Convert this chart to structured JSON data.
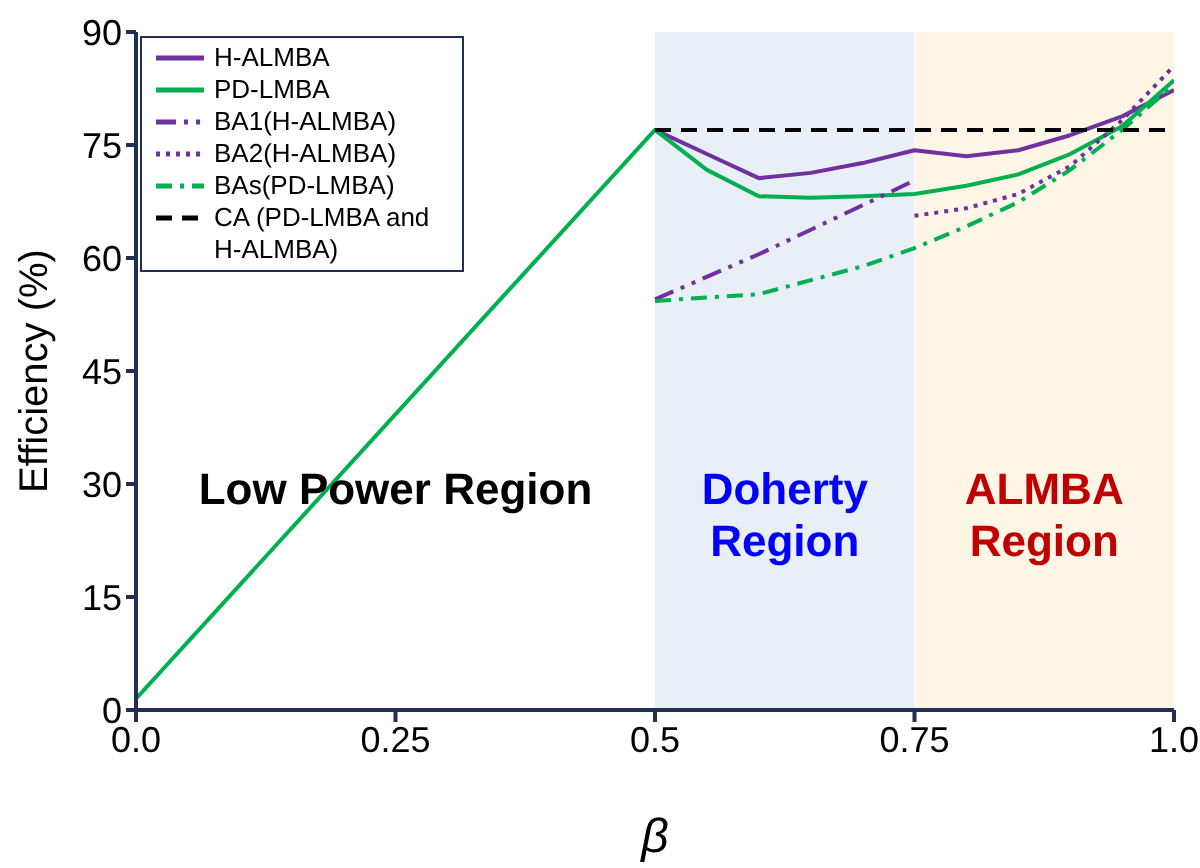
{
  "chart_data": {
    "type": "line",
    "xlabel": "β",
    "ylabel": "Efficiency (%)",
    "xlim": [
      0,
      1
    ],
    "ylim": [
      0,
      90
    ],
    "xticks": [
      {
        "value": 0,
        "label": "0.0"
      },
      0.25,
      {
        "value": 0.5,
        "label": "0.5"
      },
      0.75,
      {
        "value": 1,
        "label": "1.0"
      }
    ],
    "yticks": [
      0,
      15,
      30,
      45,
      60,
      75,
      90
    ],
    "grid": false,
    "legend": "top left",
    "marker": "none",
    "series": [
      {
        "name": "H-ALMBA",
        "color": "#7030a0",
        "line_style": "solid",
        "x": [
          0.5,
          0.55,
          0.6,
          0.65,
          0.7,
          0.75,
          0.8,
          0.85,
          0.9,
          0.95,
          1
        ],
        "values": [
          77,
          73.8,
          70.6,
          71.3,
          72.6,
          74.3,
          73.5,
          74.3,
          76.3,
          78.8,
          82.3
        ]
      },
      {
        "name": "PD-LMBA",
        "color": "#00b050",
        "line_style": "solid",
        "x": [
          0,
          0.5,
          0.55,
          0.6,
          0.65,
          0.7,
          0.75,
          0.8,
          0.85,
          0.9,
          0.95,
          1
        ],
        "values": [
          1.5,
          77,
          71.7,
          68.2,
          68,
          68.2,
          68.5,
          69.6,
          71.1,
          73.8,
          77.5,
          83.6
        ]
      },
      {
        "name": "BA1(H-ALMBA)",
        "color": "#7030a0",
        "line_style": "dashdotdot",
        "x": [
          0.5,
          0.6,
          0.7,
          0.75
        ],
        "values": [
          54.5,
          60.5,
          67,
          70.3
        ]
      },
      {
        "name": "BA2(H-ALMBA)",
        "color": "#7030a0",
        "line_style": "dotted",
        "x": [
          0.75,
          0.8,
          0.85,
          0.9,
          0.95,
          1
        ],
        "values": [
          65.6,
          66.6,
          68.5,
          72.2,
          78.3,
          85.5
        ]
      },
      {
        "name": "BAs(PD-LMBA)",
        "color": "#00b050",
        "line_style": "dashdot",
        "x": [
          0.5,
          0.6,
          0.7,
          0.75,
          0.8,
          0.85,
          0.9,
          0.95,
          1
        ],
        "values": [
          54.3,
          55.2,
          58.9,
          61.3,
          64.2,
          67.4,
          71.7,
          77,
          83
        ]
      },
      {
        "name": "CA  (PD-LMBA and H-ALMBA)",
        "color": "#000000",
        "line_style": "dashed",
        "x": [
          0.5,
          1
        ],
        "values": [
          77,
          77
        ]
      }
    ],
    "bands": [
      {
        "axis": "x",
        "from": 0.5,
        "to": 0.75,
        "label": "Doherty Region",
        "color": "#e8eff7"
      },
      {
        "axis": "x",
        "from": 0.75,
        "to": 1,
        "label": "ALMBA Region",
        "color": "#fdf6e7"
      }
    ],
    "annotations": [
      "Low Power Region"
    ]
  }
}
